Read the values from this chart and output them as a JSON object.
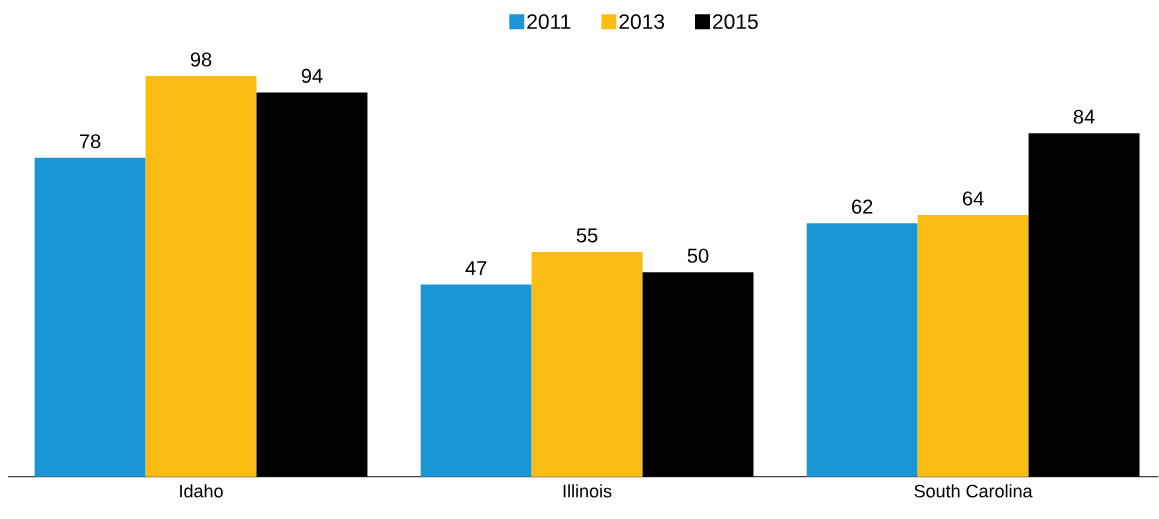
{
  "chart_data": {
    "type": "bar",
    "categories": [
      "Idaho",
      "Illinois",
      "South Carolina"
    ],
    "series": [
      {
        "name": "2011",
        "color": "#1a96d4",
        "values": [
          78,
          47,
          62
        ]
      },
      {
        "name": "2013",
        "color": "#fbbd14",
        "values": [
          98,
          55,
          64
        ]
      },
      {
        "name": "2015",
        "color": "#000000",
        "values": [
          94,
          50,
          84
        ]
      }
    ],
    "data_labels": true,
    "legend": "top"
  }
}
